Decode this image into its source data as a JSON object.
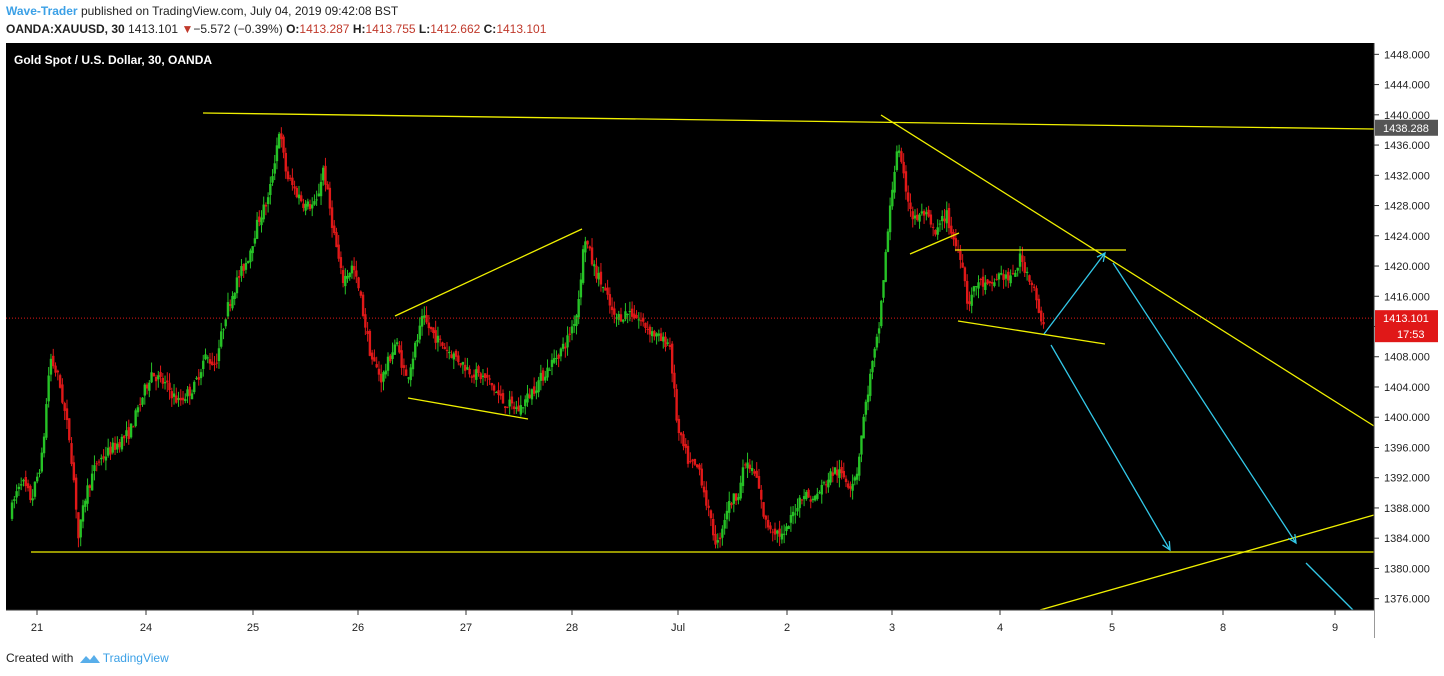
{
  "header": {
    "author": "Wave-Trader",
    "published_text": "published on TradingView.com, July 04, 2019 09:42:08 BST",
    "symbol": "OANDA:XAUUSD, 30",
    "last": "1413.101",
    "change_arrow": "▼",
    "change": "−5.572 (−0.39%)",
    "o_label": "O:",
    "o_value": "1413.287",
    "h_label": "H:",
    "h_value": "1413.755",
    "l_label": "L:",
    "l_value": "1412.662",
    "c_label": "C:",
    "c_value": "1413.101"
  },
  "footer": {
    "created_text": "Created with",
    "brand": "TradingView"
  },
  "colors": {
    "background": "#000000",
    "up_candle": "#26c226",
    "down_candle": "#e01818",
    "trendline": "#f0f000",
    "projection": "#33c8e8",
    "price_line": "#e01818",
    "axis_bg": "#ffffff",
    "axis_text": "#222222"
  },
  "chart_data": {
    "type": "candlestick",
    "title": "Gold Spot / U.S. Dollar, 30, OANDA",
    "y_ticks": [
      "1448.000",
      "1444.000",
      "1440.000",
      "1436.000",
      "1432.000",
      "1428.000",
      "1424.000",
      "1420.000",
      "1416.000",
      "1412.000",
      "1408.000",
      "1404.000",
      "1400.000",
      "1396.000",
      "1392.000",
      "1388.000",
      "1384.000",
      "1380.000",
      "1376.000"
    ],
    "ylim": [
      1374.5,
      1449.5
    ],
    "x_ticks": [
      {
        "label": "21",
        "i": 0
      },
      {
        "label": "24",
        "i": 1
      },
      {
        "label": "25",
        "i": 2
      },
      {
        "label": "26",
        "i": 3
      },
      {
        "label": "27",
        "i": 4
      },
      {
        "label": "28",
        "i": 5
      },
      {
        "label": "Jul",
        "i": 6
      },
      {
        "label": "2",
        "i": 7
      },
      {
        "label": "3",
        "i": 8
      },
      {
        "label": "4",
        "i": 9
      },
      {
        "label": "5",
        "i": 10
      },
      {
        "label": "8",
        "i": 11
      },
      {
        "label": "9",
        "i": 12
      }
    ],
    "last_price_label": "1413.101",
    "countdown_label": "17:53",
    "hline_label": "1438.288",
    "hline_value": 1438.288,
    "last_price": 1413.101,
    "price_path": [
      {
        "d": -0.25,
        "p": 1387
      },
      {
        "d": -0.15,
        "p": 1392
      },
      {
        "d": -0.05,
        "p": 1389
      },
      {
        "d": 0.05,
        "p": 1395
      },
      {
        "d": 0.12,
        "p": 1408
      },
      {
        "d": 0.2,
        "p": 1405
      },
      {
        "d": 0.3,
        "p": 1397
      },
      {
        "d": 0.35,
        "p": 1390
      },
      {
        "d": 0.38,
        "p": 1384
      },
      {
        "d": 0.45,
        "p": 1390
      },
      {
        "d": 0.55,
        "p": 1394
      },
      {
        "d": 0.7,
        "p": 1396
      },
      {
        "d": 0.85,
        "p": 1398
      },
      {
        "d": 0.95,
        "p": 1402
      },
      {
        "d": 1.05,
        "p": 1406
      },
      {
        "d": 1.2,
        "p": 1404
      },
      {
        "d": 1.3,
        "p": 1402
      },
      {
        "d": 1.45,
        "p": 1404
      },
      {
        "d": 1.55,
        "p": 1408
      },
      {
        "d": 1.65,
        "p": 1407
      },
      {
        "d": 1.75,
        "p": 1414
      },
      {
        "d": 1.85,
        "p": 1418
      },
      {
        "d": 1.95,
        "p": 1421
      },
      {
        "d": 2.05,
        "p": 1426
      },
      {
        "d": 2.15,
        "p": 1429
      },
      {
        "d": 2.25,
        "p": 1438
      },
      {
        "d": 2.32,
        "p": 1432
      },
      {
        "d": 2.4,
        "p": 1430
      },
      {
        "d": 2.5,
        "p": 1428
      },
      {
        "d": 2.6,
        "p": 1428
      },
      {
        "d": 2.67,
        "p": 1433
      },
      {
        "d": 2.75,
        "p": 1426
      },
      {
        "d": 2.85,
        "p": 1418
      },
      {
        "d": 2.95,
        "p": 1420
      },
      {
        "d": 3.02,
        "p": 1416
      },
      {
        "d": 3.12,
        "p": 1408
      },
      {
        "d": 3.22,
        "p": 1405
      },
      {
        "d": 3.35,
        "p": 1410
      },
      {
        "d": 3.45,
        "p": 1405
      },
      {
        "d": 3.6,
        "p": 1413
      },
      {
        "d": 3.75,
        "p": 1410
      },
      {
        "d": 3.9,
        "p": 1408
      },
      {
        "d": 4.05,
        "p": 1406
      },
      {
        "d": 4.2,
        "p": 1405
      },
      {
        "d": 4.35,
        "p": 1402
      },
      {
        "d": 4.5,
        "p": 1401
      },
      {
        "d": 4.65,
        "p": 1404
      },
      {
        "d": 4.8,
        "p": 1407
      },
      {
        "d": 4.95,
        "p": 1410
      },
      {
        "d": 5.05,
        "p": 1414
      },
      {
        "d": 5.12,
        "p": 1424
      },
      {
        "d": 5.2,
        "p": 1420
      },
      {
        "d": 5.3,
        "p": 1417
      },
      {
        "d": 5.4,
        "p": 1413
      },
      {
        "d": 5.55,
        "p": 1414
      },
      {
        "d": 5.7,
        "p": 1412
      },
      {
        "d": 5.85,
        "p": 1410
      },
      {
        "d": 5.92,
        "p": 1410
      },
      {
        "d": 6.0,
        "p": 1398
      },
      {
        "d": 6.1,
        "p": 1394
      },
      {
        "d": 6.2,
        "p": 1393
      },
      {
        "d": 6.3,
        "p": 1386
      },
      {
        "d": 6.36,
        "p": 1383
      },
      {
        "d": 6.45,
        "p": 1388
      },
      {
        "d": 6.55,
        "p": 1390
      },
      {
        "d": 6.62,
        "p": 1394
      },
      {
        "d": 6.72,
        "p": 1392
      },
      {
        "d": 6.8,
        "p": 1386
      },
      {
        "d": 6.9,
        "p": 1385
      },
      {
        "d": 6.97,
        "p": 1384
      },
      {
        "d": 7.05,
        "p": 1387
      },
      {
        "d": 7.15,
        "p": 1390
      },
      {
        "d": 7.25,
        "p": 1389
      },
      {
        "d": 7.35,
        "p": 1391
      },
      {
        "d": 7.45,
        "p": 1393
      },
      {
        "d": 7.55,
        "p": 1392
      },
      {
        "d": 7.6,
        "p": 1391
      },
      {
        "d": 7.67,
        "p": 1393
      },
      {
        "d": 7.72,
        "p": 1399
      },
      {
        "d": 7.8,
        "p": 1406
      },
      {
        "d": 7.87,
        "p": 1411
      },
      {
        "d": 7.95,
        "p": 1423
      },
      {
        "d": 8.0,
        "p": 1430
      },
      {
        "d": 8.05,
        "p": 1436
      },
      {
        "d": 8.1,
        "p": 1432
      },
      {
        "d": 8.2,
        "p": 1426
      },
      {
        "d": 8.3,
        "p": 1427
      },
      {
        "d": 8.4,
        "p": 1424
      },
      {
        "d": 8.5,
        "p": 1427
      },
      {
        "d": 8.58,
        "p": 1423
      },
      {
        "d": 8.65,
        "p": 1421
      },
      {
        "d": 8.7,
        "p": 1415
      },
      {
        "d": 8.8,
        "p": 1418
      },
      {
        "d": 8.9,
        "p": 1417
      },
      {
        "d": 9.0,
        "p": 1419
      },
      {
        "d": 9.1,
        "p": 1418
      },
      {
        "d": 9.18,
        "p": 1421
      },
      {
        "d": 9.25,
        "p": 1419
      },
      {
        "d": 9.32,
        "p": 1416
      },
      {
        "d": 9.36,
        "p": 1412
      },
      {
        "d": 9.4,
        "p": 1413.101
      }
    ]
  }
}
